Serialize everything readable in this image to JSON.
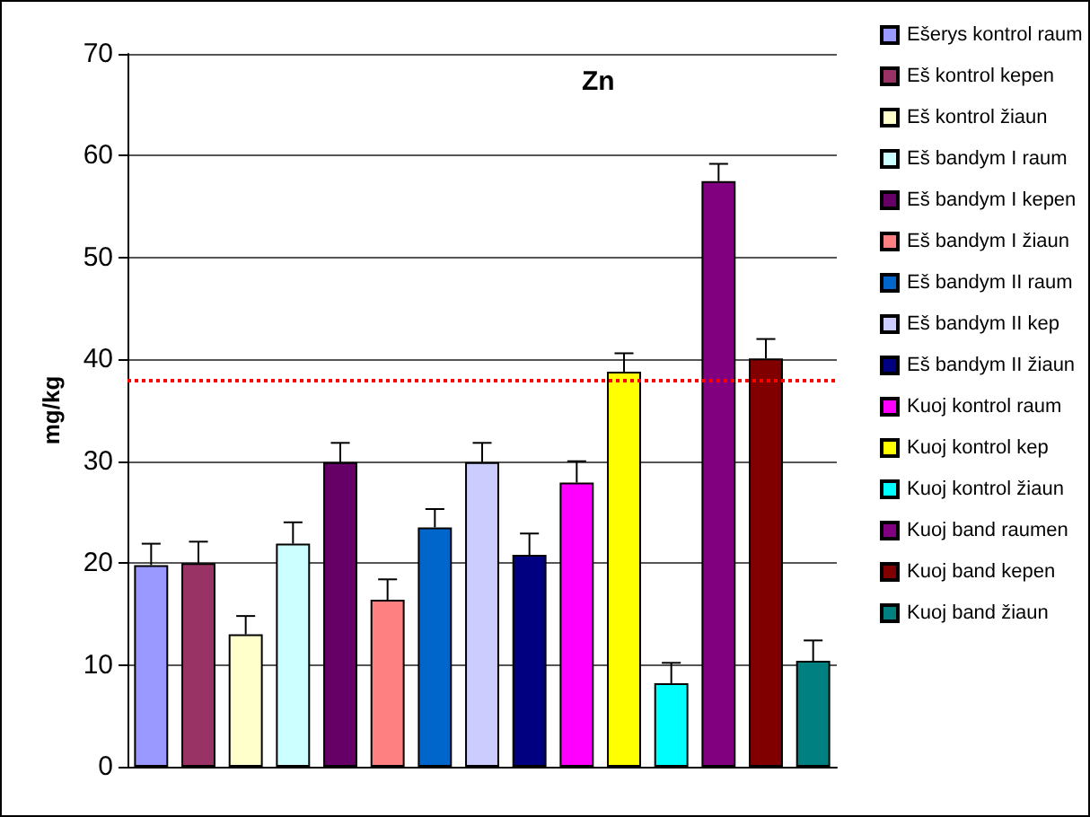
{
  "chart_data": {
    "type": "bar",
    "title": "Zn",
    "ylabel": "mg/kg",
    "categories": [
      null
    ],
    "ylim": [
      0,
      70
    ],
    "yticks": [
      0,
      10,
      20,
      30,
      40,
      50,
      60,
      70
    ],
    "grid": "y",
    "legend": "right",
    "ref_lines": [
      {
        "axis": "y",
        "value": 38,
        "color": "#ff0000",
        "line_style": "dotted"
      }
    ],
    "series": [
      {
        "name": "Ešerys kontrol raum",
        "color": "#9999ff",
        "values": [
          19.8
        ],
        "errors": [
          2.1
        ]
      },
      {
        "name": "Eš kontrol kepen",
        "color": "#993366",
        "values": [
          20.0
        ],
        "errors": [
          2.1
        ]
      },
      {
        "name": "Eš kontrol žiaun",
        "color": "#ffffcc",
        "values": [
          13.0
        ],
        "errors": [
          1.8
        ]
      },
      {
        "name": "Eš bandym I raum",
        "color": "#ccffff",
        "values": [
          21.9
        ],
        "errors": [
          2.1
        ]
      },
      {
        "name": "Eš bandym I kepen",
        "color": "#660066",
        "values": [
          29.9
        ],
        "errors": [
          1.9
        ]
      },
      {
        "name": "Eš bandym I žiaun",
        "color": "#ff8080",
        "values": [
          16.4
        ],
        "errors": [
          2.0
        ]
      },
      {
        "name": "Eš bandym II raum",
        "color": "#0066cc",
        "values": [
          23.5
        ],
        "errors": [
          1.8
        ]
      },
      {
        "name": "Eš bandym II kep",
        "color": "#ccccff",
        "values": [
          29.9
        ],
        "errors": [
          1.9
        ]
      },
      {
        "name": "Eš bandym II žiaun",
        "color": "#000080",
        "values": [
          20.8
        ],
        "errors": [
          2.1
        ]
      },
      {
        "name": "Kuoj kontrol raum",
        "color": "#ff00ff",
        "values": [
          27.9
        ],
        "errors": [
          2.1
        ]
      },
      {
        "name": "Kuoj kontrol kep",
        "color": "#ffff00",
        "values": [
          38.8
        ],
        "errors": [
          1.8
        ]
      },
      {
        "name": "Kuoj kontrol žiaun",
        "color": "#00ffff",
        "values": [
          8.2
        ],
        "errors": [
          2.0
        ]
      },
      {
        "name": "Kuoj band raumen",
        "color": "#800080",
        "values": [
          57.5
        ],
        "errors": [
          1.7
        ]
      },
      {
        "name": "Kuoj band kepen",
        "color": "#800000",
        "values": [
          40.1
        ],
        "errors": [
          1.9
        ]
      },
      {
        "name": "Kuoj band žiaun",
        "color": "#008080",
        "values": [
          10.4
        ],
        "errors": [
          2.0
        ]
      }
    ]
  }
}
